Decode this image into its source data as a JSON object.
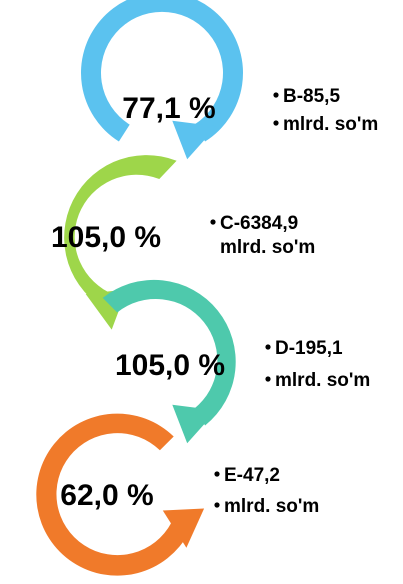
{
  "colors": {
    "b": "#5bc2ef",
    "c": "#9ed64a",
    "d": "#4ec9ac",
    "e": "#f07a2a",
    "text": "#000000"
  },
  "items": [
    {
      "id": "b",
      "percent": "77,1 %",
      "line1": "B-85,5",
      "line2": "mlrd. so'm",
      "bullet_line1": true,
      "bullet_line2": true
    },
    {
      "id": "c",
      "percent": "105,0 %",
      "line1": "C-6384,9",
      "line2": "mlrd. so'm",
      "bullet_line1": true,
      "bullet_line2": false
    },
    {
      "id": "d",
      "percent": "105,0 %",
      "line1": "D-195,1",
      "line2": "mlrd. so'm",
      "bullet_line1": true,
      "bullet_line2": true
    },
    {
      "id": "e",
      "percent": "62,0 %",
      "line1": "E-47,2",
      "line2": "mlrd. so'm",
      "bullet_line1": true,
      "bullet_line2": true
    }
  ]
}
